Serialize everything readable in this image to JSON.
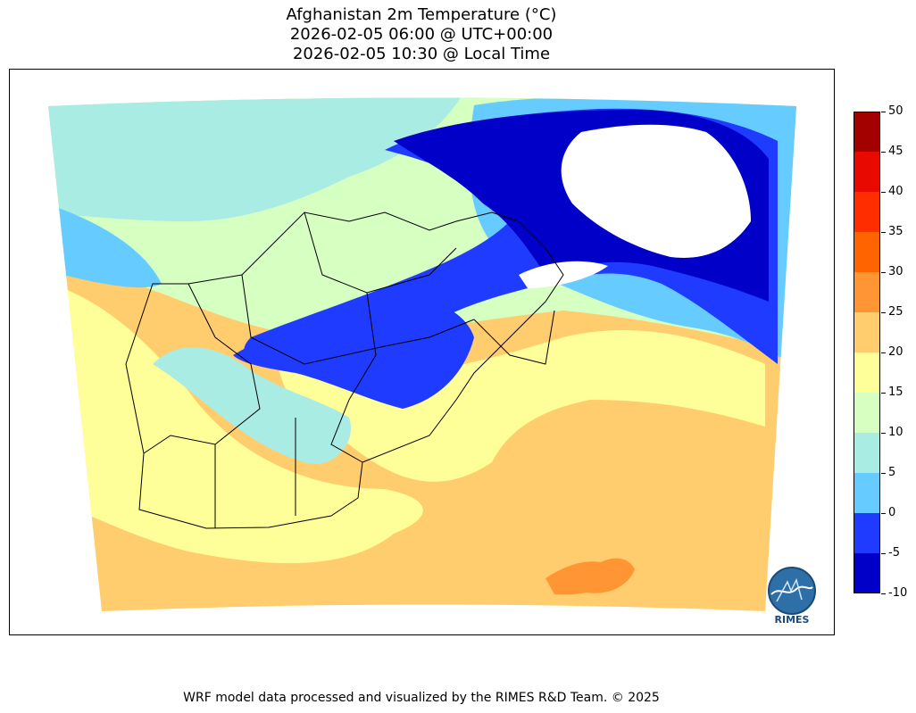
{
  "title": {
    "line1": "Afghanistan 2m Temperature (°C)",
    "line2": "2026-02-05 06:00 @ UTC+00:00",
    "line3": "2026-02-05 10:30 @ Local Time"
  },
  "colorbar": {
    "ticks": [
      "50",
      "45",
      "40",
      "35",
      "30",
      "25",
      "20",
      "15",
      "10",
      "5",
      "0",
      "-5",
      "-10"
    ],
    "levels": [
      {
        "range": "45 to 50",
        "color": "#a30000"
      },
      {
        "range": "40 to 45",
        "color": "#e80a00"
      },
      {
        "range": "35 to 40",
        "color": "#ff2d00"
      },
      {
        "range": "30 to 35",
        "color": "#ff6400"
      },
      {
        "range": "25 to 30",
        "color": "#ff9633"
      },
      {
        "range": "20 to 25",
        "color": "#ffcd6e"
      },
      {
        "range": "15 to 20",
        "color": "#ffff99"
      },
      {
        "range": "10 to 15",
        "color": "#d6ffc2"
      },
      {
        "range": "5 to 10",
        "color": "#a8ece4"
      },
      {
        "range": "0 to 5",
        "color": "#66ccff"
      },
      {
        "range": "-5 to 0",
        "color": "#1f3bff"
      },
      {
        "range": "-10 to -5",
        "color": "#0000c8"
      }
    ]
  },
  "logo": {
    "text": "RIMES"
  },
  "footer": "WRF model data processed and visualized by the RIMES R&D Team. © 2025"
}
